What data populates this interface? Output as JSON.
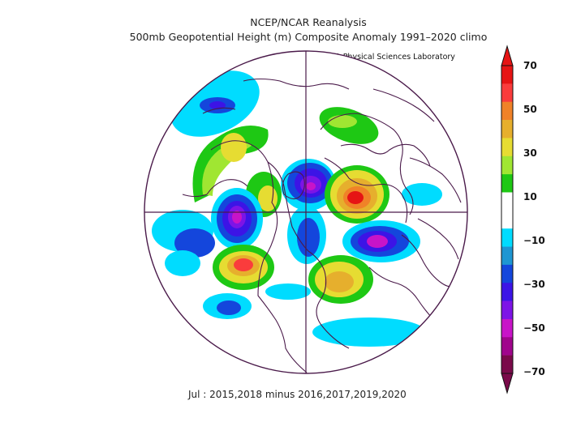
{
  "header": {
    "title": "NCEP/NCAR Reanalysis",
    "subtitle": "500mb Geopotential Height (m) Composite Anomaly 1991–2020 climo",
    "credit": "NOAA Physical Sciences Laboratory"
  },
  "caption": "Jul : 2015,2018 minus 2016,2017,2019,2020",
  "colorbar": {
    "labels": [
      "70",
      "50",
      "30",
      "10",
      "−10",
      "−30",
      "−50",
      "−70"
    ],
    "colors": [
      "#7a0a4a",
      "#a0058c",
      "#c814c8",
      "#7d14e6",
      "#3c14e6",
      "#1446dc",
      "#1e96d2",
      "#00dcff",
      "#ffffff",
      "#ffffff",
      "#1ec814",
      "#a0e632",
      "#e6dc32",
      "#e6af2d",
      "#f08228",
      "#fa3c3c",
      "#e61414"
    ]
  },
  "map": {
    "projection": "north-polar-stereographic",
    "anomalies": [
      {
        "region": "north-pacific",
        "sign": "negative",
        "level": -60
      },
      {
        "region": "gulf-of-alaska",
        "sign": "negative",
        "level": -30
      },
      {
        "region": "western-us",
        "sign": "positive",
        "level": 50
      },
      {
        "region": "arctic-ocean",
        "sign": "negative",
        "level": -50
      },
      {
        "region": "siberia",
        "sign": "positive",
        "level": 70
      },
      {
        "region": "scandinavia",
        "sign": "positive",
        "level": 40
      },
      {
        "region": "north-atlantic",
        "sign": "negative",
        "level": -60
      },
      {
        "region": "western-russia",
        "sign": "negative",
        "level": -50
      },
      {
        "region": "canada-east",
        "sign": "positive",
        "level": 20
      },
      {
        "region": "europe-south",
        "sign": "positive",
        "level": 20
      }
    ]
  }
}
